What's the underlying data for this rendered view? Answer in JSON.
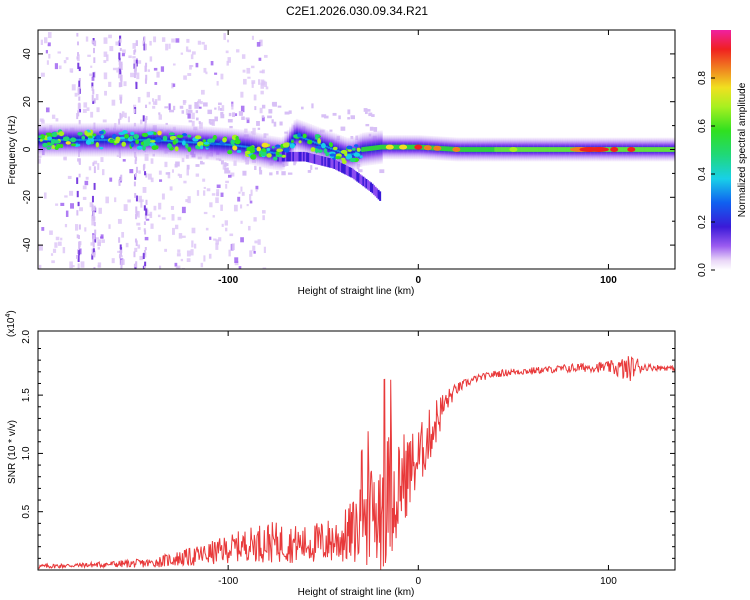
{
  "title": "C2E1.2026.030.09.34.R21",
  "chart_data": [
    {
      "type": "heatmap",
      "xlabel": "Height of straight line (km)",
      "ylabel": "Frequency (Hz)",
      "xlim": [
        -200,
        135
      ],
      "ylim": [
        -50,
        50
      ],
      "xticks": [
        -100,
        0,
        100
      ],
      "yticks": [
        -40,
        -20,
        0,
        20,
        40
      ],
      "colorbar": {
        "label": "Normalized spectral amplitude",
        "range": [
          0,
          1
        ],
        "ticks": [
          "0.0",
          "0.2",
          "0.4",
          "0.6",
          "0.8"
        ],
        "tick_values": [
          0,
          0.2,
          0.4,
          0.6,
          0.8
        ]
      },
      "ridge": {
        "x": [
          -200,
          -180,
          -160,
          -140,
          -120,
          -100,
          -90,
          -80,
          -72,
          -65,
          -55,
          -45,
          -38,
          -35,
          -30,
          -20,
          -10,
          0,
          20,
          50,
          80,
          100,
          135
        ],
        "frequency": [
          4,
          4,
          4,
          4,
          3,
          2,
          1,
          -1,
          -2,
          6,
          3,
          0,
          -2,
          -2,
          0,
          1,
          1,
          1,
          0,
          0,
          0,
          0,
          0
        ]
      }
    },
    {
      "type": "line",
      "xlabel": "Height of straight line (km)",
      "ylabel": "SNR (10 * v/v)",
      "multiplier": "(x10^4)",
      "multiplier_base": "(x10",
      "multiplier_exp": "4",
      "xlim": [
        -200,
        135
      ],
      "ylim": [
        0,
        2.05
      ],
      "xticks": [
        -100,
        0,
        100
      ],
      "yticks": [
        0.5,
        1.0,
        1.5,
        2.0
      ],
      "ytick_labels": [
        "0.5",
        "1.0",
        "1.5",
        "2.0"
      ],
      "series": [
        {
          "name": "SNR",
          "color": "#e8393a",
          "x": [
            -200,
            -180,
            -160,
            -140,
            -130,
            -120,
            -110,
            -100,
            -90,
            -80,
            -70,
            -60,
            -50,
            -40,
            -35,
            -30,
            -25,
            -22,
            -20,
            -15,
            -10,
            -5,
            0,
            5,
            10,
            15,
            20,
            25,
            30,
            40,
            50,
            60,
            70,
            80,
            90,
            100,
            105,
            110,
            115,
            120,
            135
          ],
          "baseline": [
            0.03,
            0.04,
            0.05,
            0.06,
            0.09,
            0.11,
            0.14,
            0.18,
            0.22,
            0.24,
            0.23,
            0.22,
            0.24,
            0.27,
            0.32,
            0.38,
            0.45,
            0.52,
            0.55,
            0.65,
            0.75,
            0.85,
            0.95,
            1.12,
            1.3,
            1.45,
            1.55,
            1.6,
            1.64,
            1.68,
            1.7,
            1.71,
            1.72,
            1.73,
            1.74,
            1.74,
            1.73,
            1.72,
            1.75,
            1.74,
            1.73
          ],
          "noise": [
            0.02,
            0.02,
            0.03,
            0.04,
            0.06,
            0.08,
            0.1,
            0.12,
            0.14,
            0.18,
            0.17,
            0.16,
            0.19,
            0.22,
            0.28,
            0.35,
            0.45,
            0.55,
            0.6,
            0.55,
            0.45,
            0.35,
            0.28,
            0.24,
            0.2,
            0.1,
            0.05,
            0.04,
            0.03,
            0.03,
            0.03,
            0.03,
            0.03,
            0.04,
            0.04,
            0.05,
            0.08,
            0.12,
            0.08,
            0.03,
            0.02
          ]
        }
      ]
    }
  ]
}
